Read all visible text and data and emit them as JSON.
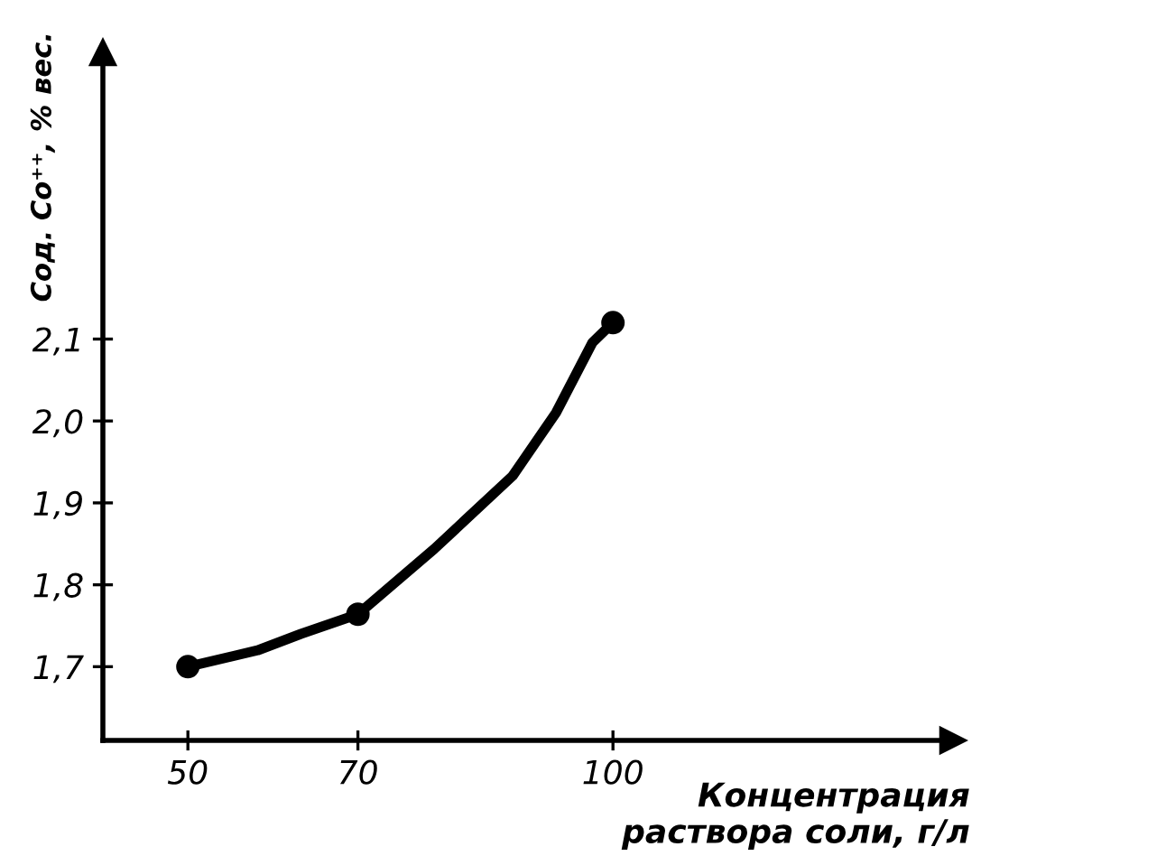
{
  "chart_data": {
    "type": "line",
    "xlabel": "Концентрация\nраствора соли, г/л",
    "ylabel": "Сод. Co⁺⁺, % вес.",
    "xlim": [
      40,
      140
    ],
    "ylim": [
      1.61,
      2.45
    ],
    "xticks": [
      50,
      70,
      100
    ],
    "yticks": [
      {
        "value": 1.7,
        "label": "1,7"
      },
      {
        "value": 1.8,
        "label": "1,8"
      },
      {
        "value": 1.9,
        "label": "1,9"
      },
      {
        "value": 2.0,
        "label": "2,0"
      },
      {
        "value": 2.1,
        "label": "2,1"
      }
    ],
    "grid": false,
    "series": [
      {
        "color": "#000000",
        "marker": "none",
        "x": [
          50,
          58.2,
          63.3,
          70,
          79,
          88.2,
          93.3,
          97.6,
          100
        ],
        "values": [
          1.7,
          1.72,
          1.74,
          1.764,
          1.844,
          1.933,
          2.01,
          2.096,
          2.12
        ]
      },
      {
        "type": "scatter",
        "color": "#000000",
        "marker": "circle",
        "x": [
          50,
          70,
          100
        ],
        "values": [
          1.7,
          1.764,
          2.12
        ]
      }
    ]
  }
}
